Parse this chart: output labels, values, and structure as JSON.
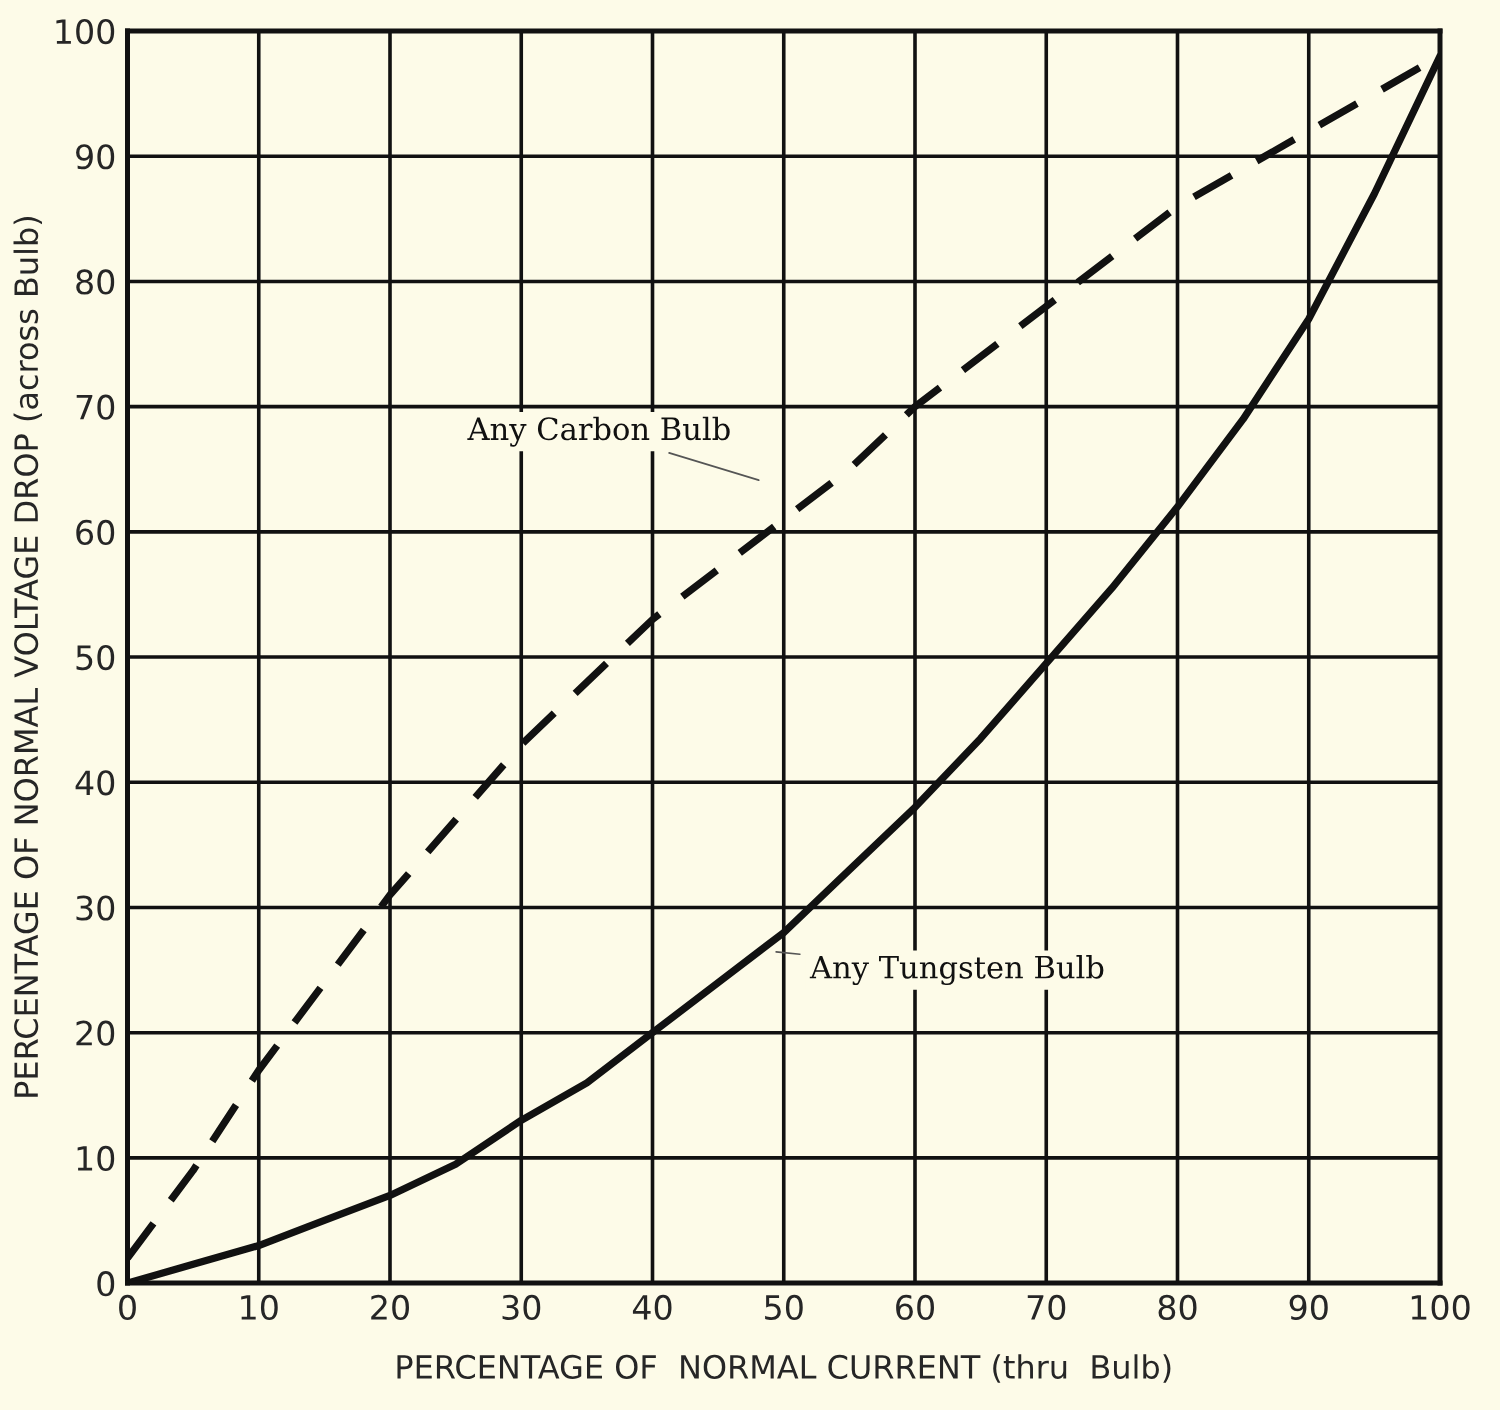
{
  "chart_data": {
    "type": "line",
    "xlabel": "PERCENTAGE OF  NORMAL CURRENT (thru  Bulb)",
    "ylabel": "PERCENTAGE OF NORMAL VOLTAGE DROP (across Bulb)",
    "x": [
      0,
      5,
      10,
      15,
      20,
      25,
      30,
      35,
      40,
      45,
      50,
      55,
      60,
      65,
      70,
      75,
      80,
      85,
      90,
      95,
      100
    ],
    "series": [
      {
        "name": "Any Carbon Bulb",
        "color": "#111111",
        "line_style": "dashed",
        "values": [
          2,
          9,
          17,
          24,
          31,
          37,
          43,
          48,
          53,
          57,
          61,
          65,
          70,
          74,
          78,
          82,
          86,
          89,
          92,
          95,
          98
        ]
      },
      {
        "name": "Any Tungsten Bulb",
        "color": "#111111",
        "line_style": "solid",
        "values": [
          0,
          1.5,
          3,
          5,
          7,
          9.5,
          13,
          16,
          20,
          24,
          28,
          33,
          38,
          43.5,
          49.5,
          55.5,
          62,
          69,
          77,
          87,
          98
        ]
      }
    ],
    "xlim": [
      0,
      100
    ],
    "ylim": [
      0,
      100
    ],
    "xticks": [
      0,
      10,
      20,
      30,
      40,
      50,
      60,
      70,
      80,
      90,
      100
    ],
    "yticks": [
      0,
      10,
      20,
      30,
      40,
      50,
      60,
      70,
      80,
      90,
      100
    ],
    "grid": true,
    "legend": false,
    "marker": "none"
  }
}
